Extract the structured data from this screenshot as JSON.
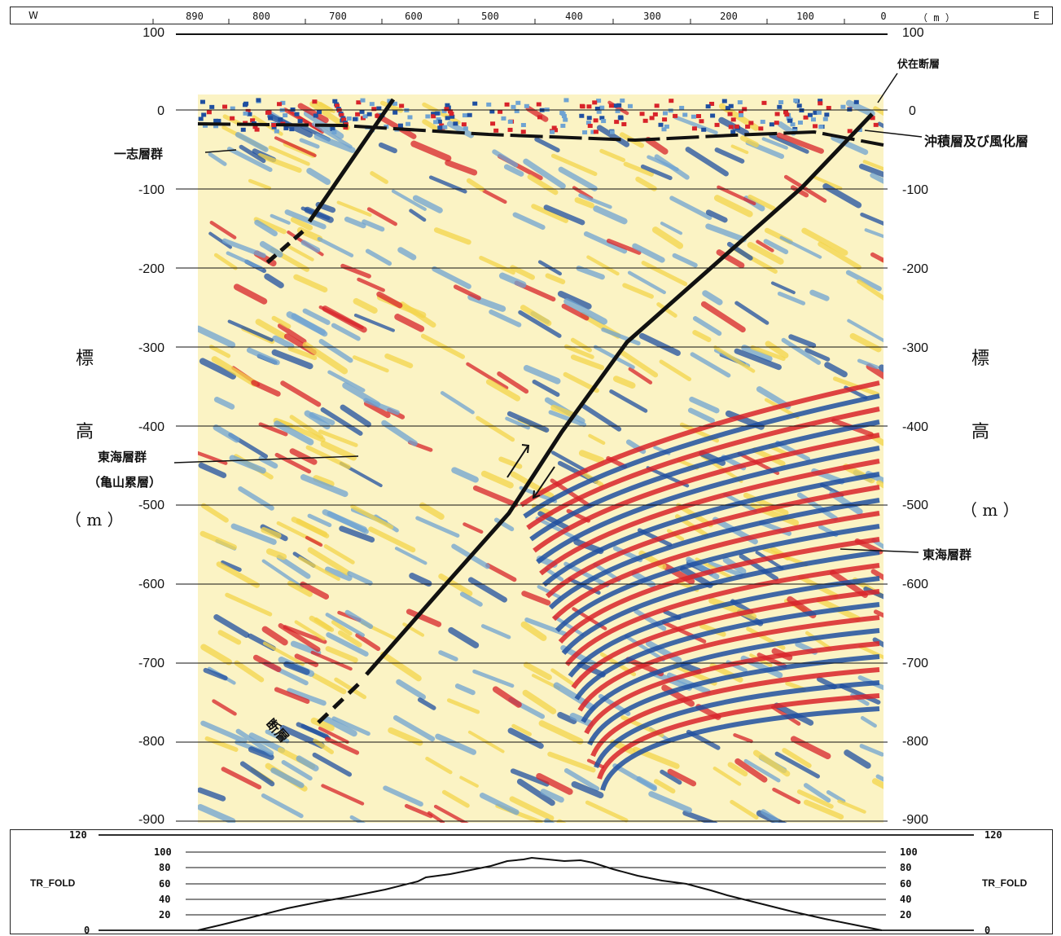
{
  "distance_axis": {
    "west_label": "W",
    "east_label": "E",
    "unit_label": "（ m ）",
    "ticks": [
      "890",
      "800",
      "700",
      "600",
      "500",
      "400",
      "300",
      "200",
      "100",
      "0"
    ]
  },
  "elevation_axis": {
    "ticks": [
      "100",
      "0",
      "-100",
      "-200",
      "-300",
      "-400",
      "-500",
      "-600",
      "-700",
      "-800",
      "-900"
    ],
    "title_chars": [
      "標",
      "高",
      "（ m ）"
    ]
  },
  "annotations": {
    "hidden_fault": "伏在断層",
    "alluvium": "沖積層及び風化層",
    "ishi_group": "一志層群",
    "tokai_group_left": "東海層群",
    "kameyama_formation": "（亀山累層）",
    "tokai_group_right": "東海層群",
    "fault": "断層"
  },
  "fold_panel": {
    "title_left": "TR_FOLD",
    "title_right": "TR_FOLD",
    "ticks": [
      "120",
      "100",
      "80",
      "60",
      "40",
      "20",
      "0"
    ]
  },
  "colors": {
    "positive": "#d8232a",
    "negative": "#1f4fa0",
    "mid_blue": "#6fa3d2",
    "yellow": "#f4d54a",
    "pale": "#fbf3c4"
  }
}
